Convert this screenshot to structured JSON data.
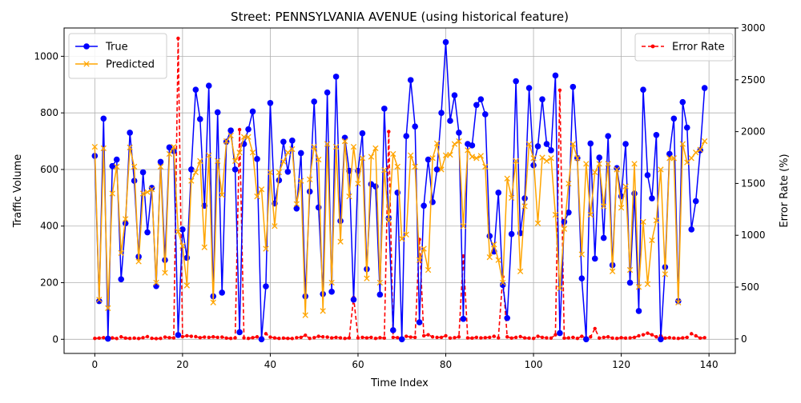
{
  "chart_data": {
    "type": "line",
    "title": "Street: PENNSYLVANIA AVENUE (using historical feature)",
    "xlabel": "Time Index",
    "ylabel": "Traffic Volume",
    "y2label": "Error Rate (%)",
    "xlim": [
      -7,
      146
    ],
    "ylim": [
      -50,
      1100
    ],
    "y2lim": [
      -140,
      3000
    ],
    "xticks": [
      0,
      20,
      40,
      60,
      80,
      100,
      120,
      140
    ],
    "yticks": [
      0,
      200,
      400,
      600,
      800,
      1000
    ],
    "y2ticks": [
      0,
      500,
      1000,
      1500,
      2000,
      2500,
      3000
    ],
    "grid": true,
    "legend_left_position": "upper-left",
    "legend_right_position": "upper-right",
    "x": [
      0,
      1,
      2,
      3,
      4,
      5,
      6,
      7,
      8,
      9,
      10,
      11,
      12,
      13,
      14,
      15,
      16,
      17,
      18,
      19,
      20,
      21,
      22,
      23,
      24,
      25,
      26,
      27,
      28,
      29,
      30,
      31,
      32,
      33,
      34,
      35,
      36,
      37,
      38,
      39,
      40,
      41,
      42,
      43,
      44,
      45,
      46,
      47,
      48,
      49,
      50,
      51,
      52,
      53,
      54,
      55,
      56,
      57,
      58,
      59,
      60,
      61,
      62,
      63,
      64,
      65,
      66,
      67,
      68,
      69,
      70,
      71,
      72,
      73,
      74,
      75,
      76,
      77,
      78,
      79,
      80,
      81,
      82,
      83,
      84,
      85,
      86,
      87,
      88,
      89,
      90,
      91,
      92,
      93,
      94,
      95,
      96,
      97,
      98,
      99,
      100,
      101,
      102,
      103,
      104,
      105,
      106,
      107,
      108,
      109,
      110,
      111,
      112,
      113,
      114,
      115,
      116,
      117,
      118,
      119,
      120,
      121,
      122,
      123,
      124,
      125,
      126,
      127,
      128,
      129,
      130,
      131,
      132,
      133,
      134,
      135,
      136,
      137,
      138,
      139
    ],
    "series": [
      {
        "name": "True",
        "axis": "left",
        "color": "#0000ff",
        "marker": "circle",
        "values": [
          648,
          135,
          780,
          2,
          612,
          635,
          212,
          410,
          730,
          560,
          292,
          590,
          378,
          535,
          188,
          627,
          280,
          678,
          665,
          15,
          388,
          288,
          600,
          882,
          778,
          472,
          896,
          152,
          802,
          165,
          698,
          738,
          600,
          25,
          690,
          742,
          805,
          637,
          0,
          187,
          835,
          480,
          562,
          698,
          592,
          702,
          462,
          658,
          152,
          522,
          840,
          466,
          160,
          872,
          168,
          928,
          418,
          712,
          595,
          140,
          595,
          728,
          248,
          548,
          540,
          158,
          815,
          428,
          32,
          518,
          0,
          718,
          916,
          752,
          60,
          472,
          635,
          485,
          600,
          800,
          1050,
          772,
          862,
          730,
          72,
          690,
          685,
          828,
          848,
          795,
          365,
          310,
          518,
          192,
          75,
          372,
          912,
          375,
          498,
          888,
          615,
          682,
          848,
          690,
          668,
          932,
          22,
          415,
          448,
          892,
          640,
          215,
          0,
          692,
          285,
          642,
          358,
          718,
          262,
          605,
          505,
          690,
          200,
          515,
          100,
          882,
          580,
          498,
          722,
          0,
          255,
          655,
          780,
          135,
          838,
          748,
          388,
          488,
          668,
          888
        ]
      },
      {
        "name": "Predicted",
        "axis": "left",
        "color": "#ffa500",
        "marker": "x",
        "values": [
          680,
          140,
          675,
          110,
          515,
          610,
          305,
          425,
          678,
          610,
          275,
          515,
          520,
          530,
          200,
          610,
          235,
          655,
          680,
          380,
          330,
          190,
          560,
          590,
          630,
          325,
          650,
          130,
          630,
          510,
          700,
          720,
          630,
          660,
          715,
          715,
          660,
          505,
          530,
          320,
          590,
          400,
          590,
          628,
          660,
          672,
          478,
          560,
          85,
          565,
          680,
          635,
          100,
          690,
          200,
          680,
          345,
          700,
          505,
          680,
          550,
          640,
          215,
          645,
          675,
          200,
          598,
          420,
          655,
          610,
          355,
          370,
          650,
          610,
          280,
          320,
          245,
          640,
          692,
          600,
          650,
          652,
          690,
          700,
          400,
          668,
          645,
          640,
          648,
          610,
          290,
          335,
          280,
          200,
          568,
          500,
          630,
          240,
          470,
          690,
          640,
          410,
          642,
          630,
          640,
          440,
          180,
          390,
          550,
          690,
          640,
          300,
          620,
          440,
          590,
          620,
          470,
          620,
          240,
          600,
          465,
          540,
          245,
          620,
          185,
          415,
          195,
          350,
          420,
          600,
          230,
          640,
          640,
          130,
          690,
          625,
          640,
          660,
          670,
          700
        ]
      },
      {
        "name": "Error Rate",
        "axis": "right",
        "color": "#ff0000",
        "marker": "dot",
        "style": "dashed",
        "values": [
          5,
          8,
          12,
          2,
          10,
          4,
          20,
          8,
          5,
          8,
          4,
          12,
          22,
          6,
          3,
          5,
          18,
          12,
          10,
          2900,
          22,
          30,
          25,
          22,
          12,
          18,
          15,
          20,
          15,
          18,
          8,
          5,
          10,
          2020,
          10,
          5,
          12,
          20,
          8,
          50,
          18,
          10,
          5,
          8,
          5,
          4,
          12,
          15,
          35,
          5,
          12,
          25,
          20,
          18,
          10,
          15,
          10,
          5,
          10,
          400,
          10,
          15,
          10,
          15,
          5,
          12,
          8,
          2000,
          15,
          12,
          8,
          25,
          18,
          15,
          960,
          30,
          40,
          20,
          15,
          15,
          30,
          8,
          12,
          20,
          800,
          10,
          8,
          15,
          10,
          12,
          15,
          25,
          10,
          600,
          20,
          8,
          15,
          22,
          10,
          8,
          5,
          25,
          15,
          10,
          8,
          40,
          2400,
          8,
          10,
          15,
          5,
          25,
          10,
          20,
          100,
          8,
          15,
          20,
          8,
          5,
          12,
          8,
          10,
          15,
          30,
          40,
          55,
          40,
          20,
          30,
          8,
          12,
          8,
          5,
          10,
          15,
          50,
          30,
          8,
          12
        ]
      }
    ]
  }
}
